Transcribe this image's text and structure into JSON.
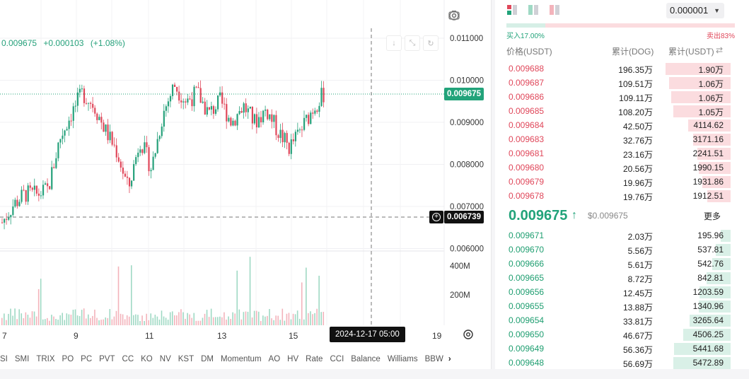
{
  "chart": {
    "ohlc_line": {
      "price": "0.009675",
      "change": "+0.000103",
      "pct": "(+1.08%)"
    },
    "y_ticks": [
      "0.011000",
      "0.010000",
      "0.009000",
      "0.008000",
      "0.007000",
      "0.006000"
    ],
    "volume_ticks": [
      "400M",
      "200M"
    ],
    "x_ticks": [
      "7",
      "9",
      "11",
      "13",
      "15",
      "19"
    ],
    "last_price_tag": "0.009675",
    "crosshair_price_tag": "0.006739",
    "crosshair_date_tag": "2024-12-17   05:00",
    "indicators": [
      "SI",
      "SMI",
      "TRIX",
      "PO",
      "PC",
      "PVT",
      "CC",
      "KO",
      "NV",
      "KST",
      "DM",
      "Momentum",
      "AO",
      "HV",
      "Rate",
      "CCI",
      "Balance",
      "Williams",
      "BBW"
    ],
    "icons": {
      "camera": "camera-icon",
      "settings": "gear-icon",
      "download": "download-icon",
      "fullscreen": "fullscreen-icon",
      "refresh": "refresh-icon",
      "more": "chevron-right-icon"
    },
    "colors": {
      "up": "#26a17b",
      "down": "#e0475a",
      "last_line": "#22a37a"
    }
  },
  "chart_data": {
    "type": "candlestick",
    "ylim": [
      0.0059,
      0.0113
    ],
    "series_note": "",
    "close_path": [
      0.00662,
      0.00705,
      0.0073,
      0.00728,
      0.0074,
      0.0086,
      0.0092,
      0.0097,
      0.0094,
      0.0088,
      0.0083,
      0.0074,
      0.0086,
      0.0079,
      0.0092,
      0.0099,
      0.0095,
      0.0097,
      0.0092,
      0.0095,
      0.009,
      0.0094,
      0.009,
      0.0093,
      0.0088,
      0.0084,
      0.0088,
      0.0093,
      0.009675
    ]
  },
  "orderbook": {
    "precision": "0.000001",
    "buy_ratio": "买入17.00%",
    "sell_ratio": "卖出83%",
    "buy_ratio_value": 0.17,
    "headers": {
      "price": "价格(USDT)",
      "qty": "累计(DOG)",
      "total": "累计(USDT)"
    },
    "asks": [
      {
        "price": "0.009688",
        "qty": "196.35万",
        "total": "1.90万",
        "depth": 0.92
      },
      {
        "price": "0.009687",
        "qty": "109.51万",
        "total": "1.06万",
        "depth": 0.87
      },
      {
        "price": "0.009686",
        "qty": "109.11万",
        "total": "1.06万",
        "depth": 0.84
      },
      {
        "price": "0.009685",
        "qty": "108.20万",
        "total": "1.05万",
        "depth": 0.81
      },
      {
        "price": "0.009684",
        "qty": "42.50万",
        "total": "4114.62",
        "depth": 0.6
      },
      {
        "price": "0.009683",
        "qty": "32.76万",
        "total": "3171.16",
        "depth": 0.53
      },
      {
        "price": "0.009681",
        "qty": "23.16万",
        "total": "2241.51",
        "depth": 0.47
      },
      {
        "price": "0.009680",
        "qty": "20.56万",
        "total": "1990.15",
        "depth": 0.45
      },
      {
        "price": "0.009679",
        "qty": "19.96万",
        "total": "1931.86",
        "depth": 0.4
      },
      {
        "price": "0.009678",
        "qty": "19.76万",
        "total": "1912.51",
        "depth": 0.33
      }
    ],
    "last_price": "0.009675",
    "last_arrow": "↑",
    "last_usd": "$0.009675",
    "more": "更多",
    "bids": [
      {
        "price": "0.009671",
        "qty": "2.03万",
        "total": "195.96",
        "depth": 0.14
      },
      {
        "price": "0.009670",
        "qty": "5.56万",
        "total": "537.81",
        "depth": 0.21
      },
      {
        "price": "0.009666",
        "qty": "5.61万",
        "total": "542.76",
        "depth": 0.26
      },
      {
        "price": "0.009665",
        "qty": "8.72万",
        "total": "842.81",
        "depth": 0.34
      },
      {
        "price": "0.009656",
        "qty": "12.45万",
        "total": "1203.59",
        "depth": 0.44
      },
      {
        "price": "0.009655",
        "qty": "13.88万",
        "total": "1340.96",
        "depth": 0.45
      },
      {
        "price": "0.009654",
        "qty": "33.81万",
        "total": "3265.64",
        "depth": 0.58
      },
      {
        "price": "0.009650",
        "qty": "46.67万",
        "total": "4506.25",
        "depth": 0.67
      },
      {
        "price": "0.009649",
        "qty": "56.36万",
        "total": "5441.68",
        "depth": 0.8
      },
      {
        "price": "0.009648",
        "qty": "56.69万",
        "total": "5472.89",
        "depth": 0.81
      }
    ]
  }
}
